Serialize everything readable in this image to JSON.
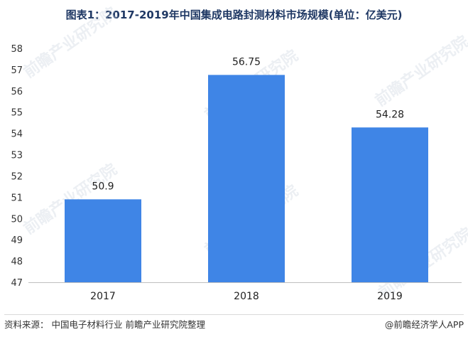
{
  "chart_data": {
    "type": "bar",
    "title": "图表1：2017-2019年中国集成电路封测材料市场规模(单位：亿美元)",
    "categories": [
      "2017",
      "2018",
      "2019"
    ],
    "values": [
      50.9,
      56.75,
      54.28
    ],
    "value_labels": [
      "50.9",
      "56.75",
      "54.28"
    ],
    "ylim": [
      47,
      58
    ],
    "yticks": [
      "47",
      "48",
      "49",
      "50",
      "51",
      "52",
      "53",
      "54",
      "55",
      "56",
      "57",
      "58"
    ],
    "xlabel": "",
    "ylabel": "",
    "grid": false,
    "bar_color": "#3f85e6"
  },
  "footer": {
    "source": "资料来源：  中国电子材料行业  前瞻产业研究院整理",
    "brand": "@前瞻经济学人APP"
  },
  "watermark": "前瞻产业研究院"
}
